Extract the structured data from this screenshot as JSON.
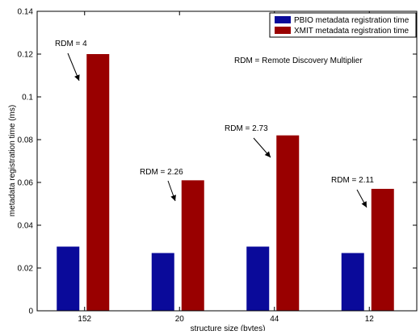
{
  "chart_data": {
    "type": "bar",
    "title": "",
    "xlabel": "structure size (bytes)",
    "ylabel": "metadata registration time (ms)",
    "categories": [
      "152",
      "20",
      "44",
      "12"
    ],
    "ylim": [
      0,
      0.14
    ],
    "yticks": [
      0,
      0.02,
      0.04,
      0.06,
      0.08,
      0.1,
      0.12,
      0.14
    ],
    "ytick_labels": [
      "0",
      "0.02",
      "0.04",
      "0.06",
      "0.08",
      "0.1",
      "0.12",
      "0.14"
    ],
    "grid": false,
    "legend_position": "top-right",
    "series": [
      {
        "name": "PBIO metadata registration time",
        "color": "#0a0a9a",
        "values": [
          0.03,
          0.027,
          0.03,
          0.027
        ]
      },
      {
        "name": "XMIT metadata registration time",
        "color": "#990000",
        "values": [
          0.12,
          0.061,
          0.082,
          0.057
        ]
      }
    ],
    "annotations": [
      {
        "text": "RDM = 4",
        "category": "152"
      },
      {
        "text": "RDM = 2.26",
        "category": "20"
      },
      {
        "text": "RDM = 2.73",
        "category": "44"
      },
      {
        "text": "RDM = 2.11",
        "category": "12"
      }
    ],
    "note": "RDM = Remote Discovery Multiplier"
  }
}
